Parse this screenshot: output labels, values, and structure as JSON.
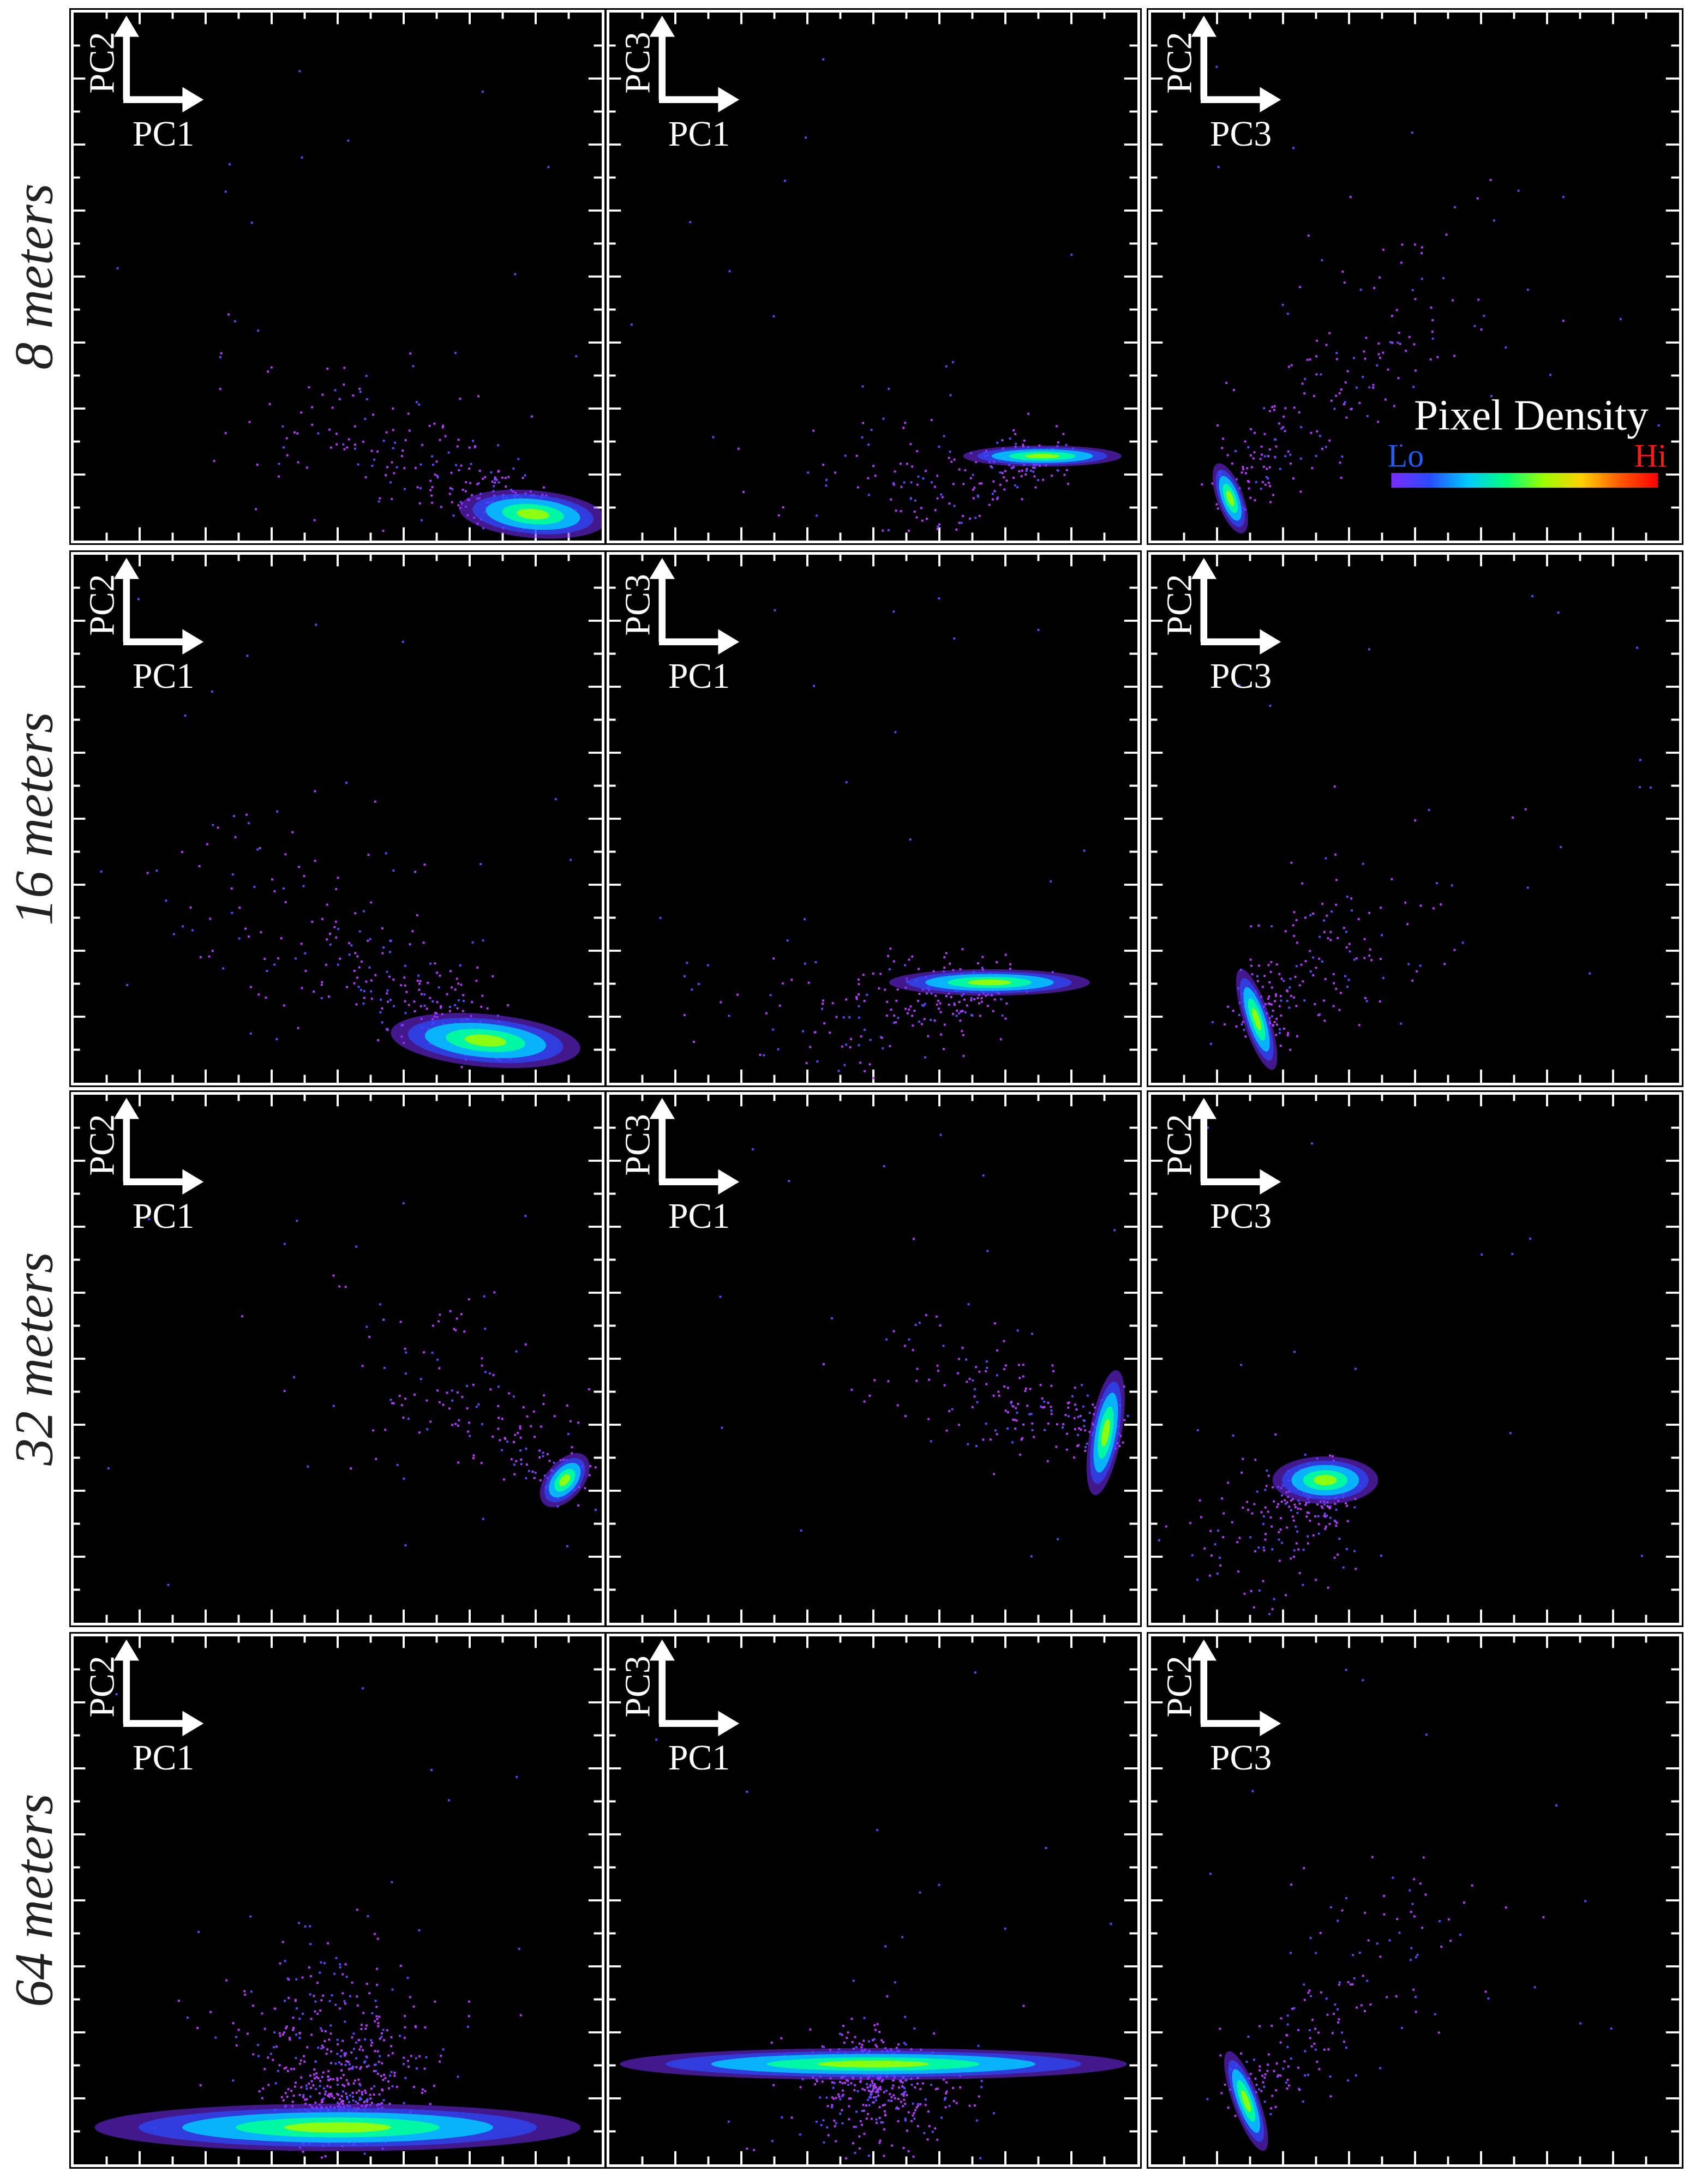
{
  "chart_data": {
    "type": "scatter",
    "description_grid": "4 rows x 3 columns of 2D pixel-density scatter plots",
    "rows": [
      "8 meters",
      "16 meters",
      "32 meters",
      "64 meters"
    ],
    "columns": [
      {
        "y_label": "PC2",
        "x_label": "PC1"
      },
      {
        "y_label": "PC3",
        "x_label": "PC1"
      },
      {
        "y_label": "PC2",
        "x_label": "PC3"
      }
    ],
    "legend": {
      "title": "Pixel Density",
      "lo": "Lo",
      "hi": "Hi",
      "placement": "top-right panel, bottom-right",
      "colors": [
        "#7a2cff",
        "#2a4bff",
        "#00c8ff",
        "#00ff7f",
        "#9bff00",
        "#ffd000",
        "#ff5a00",
        "#ff0000"
      ]
    },
    "background": "#000000",
    "panels": [
      {
        "row": 0,
        "col": 0,
        "core": {
          "cx": 0.87,
          "cy": 0.05,
          "rx": 0.14,
          "ry": 0.045,
          "angle": -5
        },
        "spread": {
          "toward": [
            0.35,
            0.28
          ],
          "n": 260
        }
      },
      {
        "row": 0,
        "col": 1,
        "core": {
          "cx": 0.82,
          "cy": 0.16,
          "rx": 0.15,
          "ry": 0.02,
          "angle": 0
        },
        "spread": {
          "toward": [
            0.45,
            0.05
          ],
          "n": 240
        }
      },
      {
        "row": 0,
        "col": 2,
        "core": {
          "cx": 0.15,
          "cy": 0.08,
          "rx": 0.025,
          "ry": 0.07,
          "angle": 20
        },
        "spread": {
          "toward": [
            0.55,
            0.55
          ],
          "n": 200
        }
      },
      {
        "row": 1,
        "col": 0,
        "core": {
          "cx": 0.78,
          "cy": 0.08,
          "rx": 0.18,
          "ry": 0.05,
          "angle": -5
        },
        "spread": {
          "toward": [
            0.3,
            0.4
          ],
          "n": 300
        }
      },
      {
        "row": 1,
        "col": 1,
        "core": {
          "cx": 0.72,
          "cy": 0.19,
          "rx": 0.19,
          "ry": 0.025,
          "angle": 0
        },
        "spread": {
          "toward": [
            0.35,
            0.08
          ],
          "n": 260
        }
      },
      {
        "row": 1,
        "col": 2,
        "core": {
          "cx": 0.2,
          "cy": 0.12,
          "rx": 0.025,
          "ry": 0.1,
          "angle": 18
        },
        "spread": {
          "toward": [
            0.45,
            0.35
          ],
          "n": 220
        }
      },
      {
        "row": 2,
        "col": 0,
        "core": {
          "cx": 0.93,
          "cy": 0.27,
          "rx": 0.035,
          "ry": 0.06,
          "angle": -40
        },
        "spread": {
          "toward": [
            0.55,
            0.55
          ],
          "n": 180
        }
      },
      {
        "row": 2,
        "col": 1,
        "core": {
          "cx": 0.94,
          "cy": 0.36,
          "rx": 0.03,
          "ry": 0.12,
          "angle": -10
        },
        "spread": {
          "toward": [
            0.55,
            0.5
          ],
          "n": 200
        }
      },
      {
        "row": 2,
        "col": 2,
        "core": {
          "cx": 0.33,
          "cy": 0.27,
          "rx": 0.1,
          "ry": 0.045,
          "angle": 0
        },
        "spread": {
          "toward": [
            0.15,
            0.08
          ],
          "n": 240
        }
      },
      {
        "row": 3,
        "col": 0,
        "core": {
          "cx": 0.5,
          "cy": 0.07,
          "rx": 0.46,
          "ry": 0.045,
          "angle": 0
        },
        "spread": {
          "toward": [
            0.5,
            0.3
          ],
          "n": 650
        }
      },
      {
        "row": 3,
        "col": 1,
        "core": {
          "cx": 0.5,
          "cy": 0.19,
          "rx": 0.48,
          "ry": 0.03,
          "angle": 0
        },
        "spread": {
          "toward": [
            0.5,
            0.1
          ],
          "n": 500
        }
      },
      {
        "row": 3,
        "col": 2,
        "core": {
          "cx": 0.18,
          "cy": 0.12,
          "rx": 0.025,
          "ry": 0.1,
          "angle": 20
        },
        "spread": {
          "toward": [
            0.5,
            0.5
          ],
          "n": 180
        }
      }
    ]
  }
}
